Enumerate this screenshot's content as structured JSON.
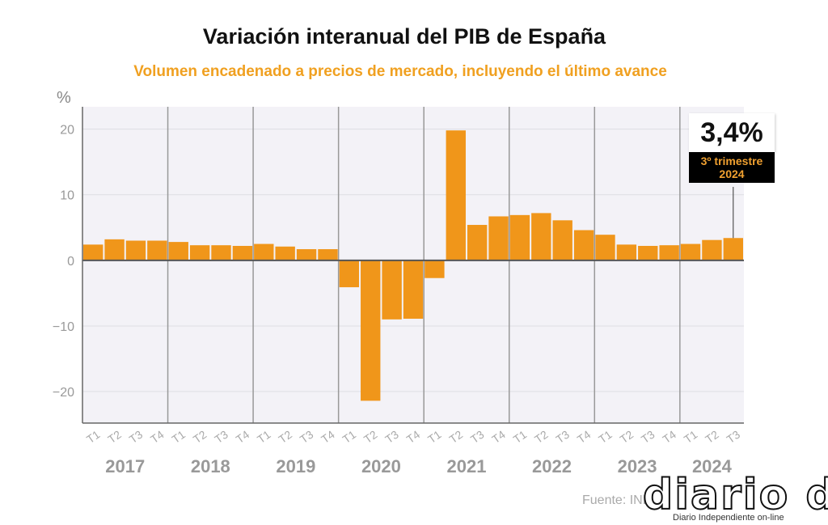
{
  "title": "Variación interanual del PIB de España",
  "subtitle": "Volumen encadenado a precios de mercado, incluyendo el último avance",
  "source": "Fuente: INE",
  "logo": {
    "text": "diario dia",
    "tagline": "Diario Independiente on-line"
  },
  "callout": {
    "value": "3,4%",
    "label_line1": "3º trimestre",
    "label_line2": "2024"
  },
  "colors": {
    "bar": "#f0961a",
    "plot_bg": "#f3f2f7",
    "accent": "#f0a020"
  },
  "chart_data": {
    "type": "bar",
    "ylabel": "%",
    "ylim": [
      -24.8,
      23.4
    ],
    "yticks": [
      20,
      10,
      0,
      -10,
      -20
    ],
    "ytick_labels": [
      "20",
      "10",
      "0",
      "−10",
      "−20"
    ],
    "grid": true,
    "years": [
      "2017",
      "2018",
      "2019",
      "2020",
      "2021",
      "2022",
      "2023",
      "2024"
    ],
    "categories": [
      "T1",
      "T2",
      "T3",
      "T4",
      "T1",
      "T2",
      "T3",
      "T4",
      "T1",
      "T2",
      "T3",
      "T4",
      "T1",
      "T2",
      "T3",
      "T4",
      "T1",
      "T2",
      "T3",
      "T4",
      "T1",
      "T2",
      "T3",
      "T4",
      "T1",
      "T2",
      "T3",
      "T4",
      "T1",
      "T2",
      "T3"
    ],
    "values": [
      2.4,
      3.2,
      3.0,
      3.0,
      2.8,
      2.3,
      2.3,
      2.2,
      2.5,
      2.1,
      1.7,
      1.7,
      -4.1,
      -21.4,
      -9.0,
      -8.9,
      -2.7,
      19.8,
      5.4,
      6.7,
      6.9,
      7.2,
      6.1,
      4.6,
      3.9,
      2.4,
      2.2,
      2.3,
      2.5,
      3.1,
      3.4
    ]
  }
}
